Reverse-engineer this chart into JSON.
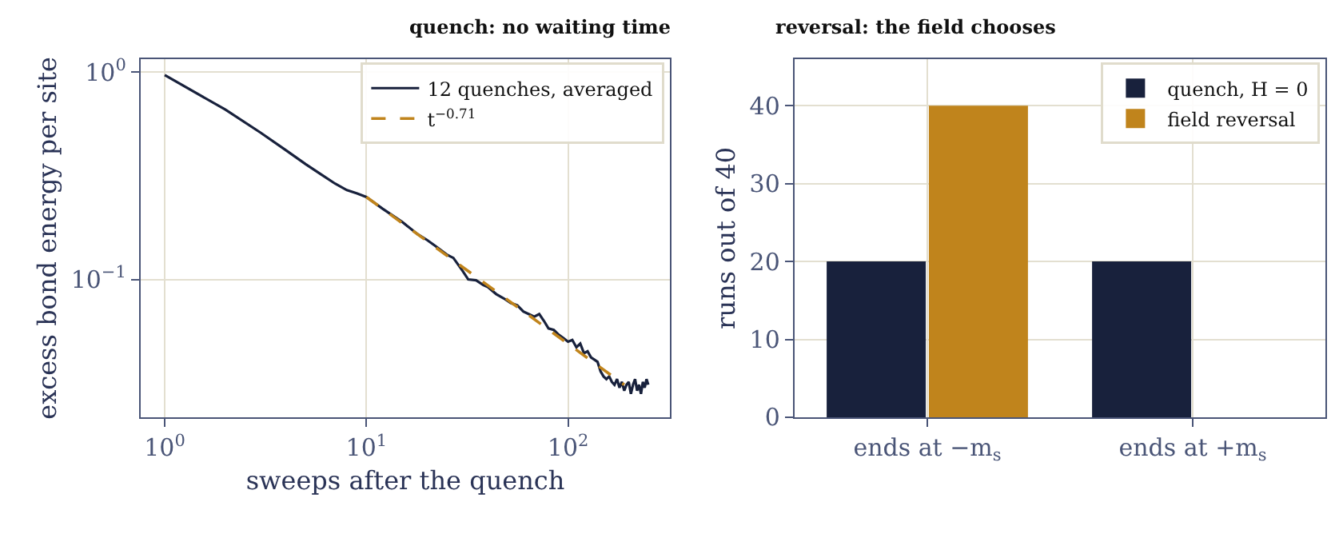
{
  "chart_data": [
    {
      "type": "line",
      "title": "quench: no waiting time",
      "xlabel": "sweeps after the quench",
      "ylabel": "excess bond energy per site",
      "log": "xy",
      "xlim": [
        0.76,
        320
      ],
      "ylim": [
        0.0216,
        1.16
      ],
      "xticks": [
        {
          "value": 1,
          "label": "10$^{0}$"
        },
        {
          "value": 10,
          "label": "10$^{1}$"
        },
        {
          "value": 100,
          "label": "10$^{2}$"
        }
      ],
      "yticks": [
        {
          "value": 0.1,
          "label": "10$^{−1}$"
        },
        {
          "value": 1,
          "label": "10$^{0}$"
        }
      ],
      "grid": true,
      "legend": "top right",
      "series": [
        {
          "name": "12 quenches, averaged",
          "color": "#18213c",
          "line_style": "solid",
          "x": [
            1,
            2,
            3,
            4,
            5,
            6,
            7,
            8,
            9,
            10,
            12,
            15,
            18,
            20,
            22,
            25,
            27,
            30,
            32,
            35,
            38,
            40,
            44,
            48,
            52,
            56,
            60,
            64,
            68,
            72,
            76,
            80,
            85,
            90,
            95,
            100,
            105,
            110,
            115,
            120,
            125,
            130,
            135,
            140,
            145,
            150,
            155,
            160,
            165,
            170,
            175,
            180,
            185,
            190,
            195,
            200,
            205,
            210,
            215,
            220,
            225,
            230,
            235,
            240,
            245,
            250
          ],
          "values": [
            0.97,
            0.66,
            0.51,
            0.42,
            0.36,
            0.32,
            0.29,
            0.27,
            0.26,
            0.25,
            0.22,
            0.19,
            0.165,
            0.155,
            0.145,
            0.132,
            0.127,
            0.11,
            0.1,
            0.099,
            0.094,
            0.092,
            0.085,
            0.081,
            0.077,
            0.075,
            0.07,
            0.068,
            0.066,
            0.068,
            0.063,
            0.058,
            0.057,
            0.054,
            0.052,
            0.05,
            0.051,
            0.047,
            0.049,
            0.044,
            0.045,
            0.042,
            0.041,
            0.04,
            0.036,
            0.034,
            0.033,
            0.034,
            0.032,
            0.031,
            0.033,
            0.03,
            0.032,
            0.029,
            0.031,
            0.032,
            0.028,
            0.031,
            0.033,
            0.029,
            0.031,
            0.028,
            0.032,
            0.03,
            0.033,
            0.031
          ]
        },
        {
          "name": "t$^{−0.71}$",
          "color": "#c0841c",
          "line_style": "dashed",
          "x": [
            10,
            190
          ],
          "values": [
            0.25,
            0.031
          ]
        }
      ]
    },
    {
      "type": "bar",
      "title": "reversal: the field chooses",
      "ylabel": "runs out of 40",
      "categories": [
        "ends at −m$_{s}$",
        "ends at +m$_{s}$"
      ],
      "ylim": [
        0,
        46
      ],
      "yticks": [
        0,
        10,
        20,
        30,
        40
      ],
      "grid": true,
      "legend": "top right",
      "series": [
        {
          "name": "quench, H = 0",
          "color": "#18213c",
          "values": [
            20,
            20
          ]
        },
        {
          "name": "field reversal",
          "color": "#c0841c",
          "values": [
            40,
            0
          ]
        }
      ]
    }
  ]
}
